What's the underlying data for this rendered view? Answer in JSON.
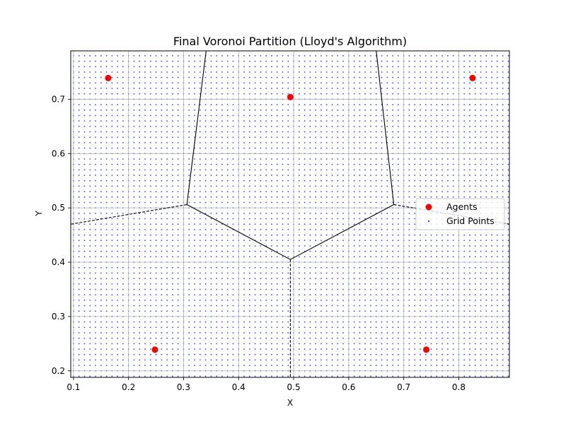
{
  "chart_data": {
    "type": "scatter",
    "title": "Final Voronoi Partition (Lloyd's Algorithm)",
    "xlabel": "X",
    "ylabel": "Y",
    "xlim": [
      0.095,
      0.892
    ],
    "ylim": [
      0.188,
      0.789
    ],
    "xticks": [
      0.1,
      0.2,
      0.3,
      0.4,
      0.5,
      0.6,
      0.7,
      0.8
    ],
    "yticks": [
      0.2,
      0.3,
      0.4,
      0.5,
      0.6,
      0.7
    ],
    "xtick_labels": [
      "0.1",
      "0.2",
      "0.3",
      "0.4",
      "0.5",
      "0.6",
      "0.7",
      "0.8"
    ],
    "ytick_labels": [
      "0.2",
      "0.3",
      "0.4",
      "0.5",
      "0.6",
      "0.7"
    ],
    "grid": true,
    "legend_position": "center-right",
    "series": [
      {
        "name": "Agents",
        "marker": "circle",
        "color": "#ff0000",
        "points": [
          {
            "x": 0.163,
            "y": 0.739
          },
          {
            "x": 0.494,
            "y": 0.704
          },
          {
            "x": 0.825,
            "y": 0.739
          },
          {
            "x": 0.248,
            "y": 0.239
          },
          {
            "x": 0.741,
            "y": 0.239
          }
        ]
      },
      {
        "name": "Grid Points",
        "marker": "dot",
        "color": "#0000ff",
        "grid_spacing": 0.01,
        "x_range": [
          0.1,
          0.89
        ],
        "y_range": [
          0.19,
          0.78
        ]
      }
    ],
    "voronoi_edges": [
      {
        "from": {
          "x": 0.494,
          "y": 0.405
        },
        "to": {
          "x": 0.306,
          "y": 0.506
        },
        "style": "solid"
      },
      {
        "from": {
          "x": 0.494,
          "y": 0.405
        },
        "to": {
          "x": 0.682,
          "y": 0.506
        },
        "style": "solid"
      },
      {
        "from": {
          "x": 0.306,
          "y": 0.506
        },
        "to": {
          "x": 0.341,
          "y": 0.789
        },
        "style": "solid"
      },
      {
        "from": {
          "x": 0.682,
          "y": 0.506
        },
        "to": {
          "x": 0.65,
          "y": 0.789
        },
        "style": "solid"
      },
      {
        "from": {
          "x": 0.306,
          "y": 0.506
        },
        "to": {
          "x": 0.095,
          "y": 0.47
        },
        "style": "dashed"
      },
      {
        "from": {
          "x": 0.682,
          "y": 0.506
        },
        "to": {
          "x": 0.892,
          "y": 0.47
        },
        "style": "dashed"
      },
      {
        "from": {
          "x": 0.494,
          "y": 0.405
        },
        "to": {
          "x": 0.494,
          "y": 0.188
        },
        "style": "dashed"
      }
    ]
  }
}
